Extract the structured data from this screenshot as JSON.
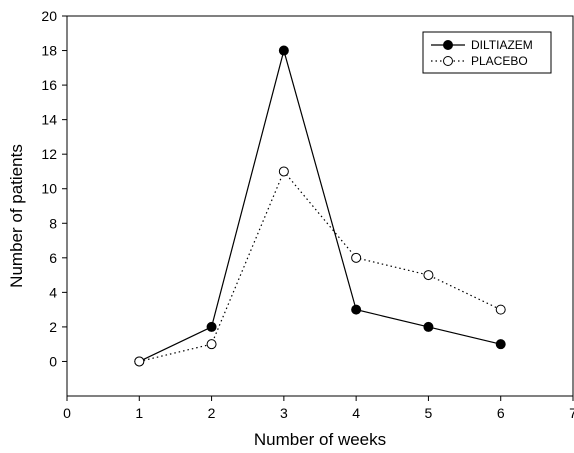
{
  "chart_data": {
    "type": "line",
    "title": "",
    "xlabel": "Number of weeks",
    "ylabel": "Number of patients",
    "xlim": [
      0,
      7
    ],
    "ylim": [
      -2,
      20
    ],
    "x_ticks": [
      0,
      1,
      2,
      3,
      4,
      5,
      6,
      7
    ],
    "y_ticks": [
      0,
      2,
      4,
      6,
      8,
      10,
      12,
      14,
      16,
      18,
      20
    ],
    "grid": false,
    "legend_position": "top-right",
    "series": [
      {
        "name": "DILTIAZEM",
        "line_style": "solid",
        "marker": "filled-circle",
        "color": "#000000",
        "x": [
          1,
          2,
          3,
          4,
          5,
          6
        ],
        "y": [
          0,
          2,
          18,
          3,
          2,
          1
        ]
      },
      {
        "name": "PLACEBO",
        "line_style": "dotted",
        "marker": "open-circle",
        "color": "#000000",
        "x": [
          1,
          2,
          3,
          4,
          5,
          6
        ],
        "y": [
          0,
          1,
          11,
          6,
          5,
          3
        ]
      }
    ]
  }
}
